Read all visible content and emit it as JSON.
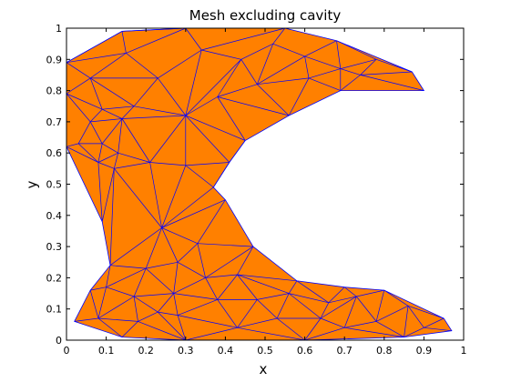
{
  "chart_data": {
    "type": "mesh",
    "title": "Mesh excluding cavity",
    "xlabel": "x",
    "ylabel": "y",
    "xlim": [
      0,
      1
    ],
    "ylim": [
      0,
      1
    ],
    "xticks": [
      "0",
      "0.1",
      "0.2",
      "0.3",
      "0.4",
      "0.5",
      "0.6",
      "0.7",
      "0.8",
      "0.9",
      "1"
    ],
    "yticks": [
      "0",
      "0.1",
      "0.2",
      "0.3",
      "0.4",
      "0.5",
      "0.6",
      "0.7",
      "0.8",
      "0.9",
      "1"
    ],
    "fill_color": "#ff8000",
    "edge_color": "#0000ff",
    "boundary": [
      [
        0.0,
        0.89
      ],
      [
        0.14,
        0.99
      ],
      [
        0.3,
        1.0
      ],
      [
        0.55,
        1.0
      ],
      [
        0.68,
        0.96
      ],
      [
        0.87,
        0.86
      ],
      [
        0.9,
        0.8
      ],
      [
        0.69,
        0.8
      ],
      [
        0.56,
        0.72
      ],
      [
        0.45,
        0.64
      ],
      [
        0.41,
        0.57
      ],
      [
        0.37,
        0.49
      ],
      [
        0.4,
        0.45
      ],
      [
        0.47,
        0.3
      ],
      [
        0.58,
        0.19
      ],
      [
        0.7,
        0.17
      ],
      [
        0.8,
        0.16
      ],
      [
        0.95,
        0.07
      ],
      [
        0.97,
        0.03
      ],
      [
        0.85,
        0.01
      ],
      [
        0.6,
        0.0
      ],
      [
        0.3,
        0.0
      ],
      [
        0.14,
        0.01
      ],
      [
        0.02,
        0.06
      ],
      [
        0.06,
        0.16
      ],
      [
        0.11,
        0.24
      ],
      [
        0.09,
        0.38
      ],
      [
        0.0,
        0.62
      ],
      [
        0.0,
        0.79
      ]
    ],
    "nodes": [
      [
        0.0,
        0.89
      ],
      [
        0.14,
        0.99
      ],
      [
        0.3,
        1.0
      ],
      [
        0.55,
        1.0
      ],
      [
        0.68,
        0.96
      ],
      [
        0.87,
        0.86
      ],
      [
        0.9,
        0.8
      ],
      [
        0.69,
        0.8
      ],
      [
        0.56,
        0.72
      ],
      [
        0.45,
        0.64
      ],
      [
        0.41,
        0.57
      ],
      [
        0.37,
        0.49
      ],
      [
        0.4,
        0.45
      ],
      [
        0.47,
        0.3
      ],
      [
        0.58,
        0.19
      ],
      [
        0.7,
        0.17
      ],
      [
        0.8,
        0.16
      ],
      [
        0.95,
        0.07
      ],
      [
        0.97,
        0.03
      ],
      [
        0.85,
        0.01
      ],
      [
        0.6,
        0.0
      ],
      [
        0.3,
        0.0
      ],
      [
        0.14,
        0.01
      ],
      [
        0.02,
        0.06
      ],
      [
        0.06,
        0.16
      ],
      [
        0.11,
        0.24
      ],
      [
        0.09,
        0.38
      ],
      [
        0.0,
        0.62
      ],
      [
        0.0,
        0.79
      ],
      [
        0.06,
        0.84
      ],
      [
        0.15,
        0.92
      ],
      [
        0.23,
        0.84
      ],
      [
        0.34,
        0.93
      ],
      [
        0.44,
        0.9
      ],
      [
        0.52,
        0.95
      ],
      [
        0.6,
        0.91
      ],
      [
        0.61,
        0.84
      ],
      [
        0.48,
        0.82
      ],
      [
        0.38,
        0.78
      ],
      [
        0.3,
        0.72
      ],
      [
        0.17,
        0.75
      ],
      [
        0.09,
        0.74
      ],
      [
        0.14,
        0.71
      ],
      [
        0.06,
        0.7
      ],
      [
        0.03,
        0.63
      ],
      [
        0.09,
        0.63
      ],
      [
        0.13,
        0.6
      ],
      [
        0.21,
        0.57
      ],
      [
        0.3,
        0.56
      ],
      [
        0.08,
        0.57
      ],
      [
        0.12,
        0.55
      ],
      [
        0.24,
        0.36
      ],
      [
        0.28,
        0.25
      ],
      [
        0.2,
        0.23
      ],
      [
        0.33,
        0.31
      ],
      [
        0.35,
        0.2
      ],
      [
        0.43,
        0.21
      ],
      [
        0.27,
        0.15
      ],
      [
        0.17,
        0.14
      ],
      [
        0.1,
        0.17
      ],
      [
        0.08,
        0.07
      ],
      [
        0.18,
        0.06
      ],
      [
        0.23,
        0.09
      ],
      [
        0.28,
        0.08
      ],
      [
        0.38,
        0.13
      ],
      [
        0.43,
        0.04
      ],
      [
        0.48,
        0.13
      ],
      [
        0.53,
        0.07
      ],
      [
        0.56,
        0.15
      ],
      [
        0.66,
        0.12
      ],
      [
        0.64,
        0.07
      ],
      [
        0.7,
        0.04
      ],
      [
        0.73,
        0.14
      ],
      [
        0.78,
        0.06
      ],
      [
        0.86,
        0.11
      ],
      [
        0.9,
        0.04
      ],
      [
        0.78,
        0.9
      ],
      [
        0.74,
        0.85
      ],
      [
        0.69,
        0.87
      ]
    ],
    "edges": [
      [
        29,
        0
      ],
      [
        29,
        30
      ],
      [
        29,
        31
      ],
      [
        29,
        28
      ],
      [
        29,
        41
      ],
      [
        29,
        40
      ],
      [
        30,
        1
      ],
      [
        30,
        2
      ],
      [
        30,
        31
      ],
      [
        30,
        0
      ],
      [
        31,
        32
      ],
      [
        31,
        40
      ],
      [
        31,
        39
      ],
      [
        32,
        2
      ],
      [
        32,
        3
      ],
      [
        32,
        33
      ],
      [
        32,
        39
      ],
      [
        33,
        34
      ],
      [
        33,
        37
      ],
      [
        33,
        38
      ],
      [
        33,
        39
      ],
      [
        34,
        3
      ],
      [
        34,
        35
      ],
      [
        34,
        37
      ],
      [
        35,
        4
      ],
      [
        35,
        36
      ],
      [
        35,
        37
      ],
      [
        36,
        37
      ],
      [
        36,
        7
      ],
      [
        36,
        78
      ],
      [
        36,
        8
      ],
      [
        37,
        38
      ],
      [
        37,
        8
      ],
      [
        38,
        39
      ],
      [
        38,
        9
      ],
      [
        38,
        8
      ],
      [
        39,
        40
      ],
      [
        39,
        42
      ],
      [
        39,
        47
      ],
      [
        39,
        48
      ],
      [
        39,
        10
      ],
      [
        39,
        9
      ],
      [
        40,
        41
      ],
      [
        40,
        42
      ],
      [
        41,
        42
      ],
      [
        41,
        43
      ],
      [
        41,
        28
      ],
      [
        42,
        43
      ],
      [
        42,
        45
      ],
      [
        42,
        46
      ],
      [
        42,
        47
      ],
      [
        43,
        28
      ],
      [
        43,
        44
      ],
      [
        43,
        45
      ],
      [
        44,
        27
      ],
      [
        44,
        45
      ],
      [
        44,
        49
      ],
      [
        45,
        46
      ],
      [
        45,
        49
      ],
      [
        46,
        47
      ],
      [
        46,
        50
      ],
      [
        46,
        49
      ],
      [
        47,
        48
      ],
      [
        47,
        50
      ],
      [
        47,
        51
      ],
      [
        48,
        10
      ],
      [
        48,
        11
      ],
      [
        48,
        51
      ],
      [
        49,
        27
      ],
      [
        49,
        50
      ],
      [
        49,
        26
      ],
      [
        50,
        26
      ],
      [
        50,
        51
      ],
      [
        50,
        25
      ],
      [
        51,
        11
      ],
      [
        51,
        12
      ],
      [
        51,
        54
      ],
      [
        51,
        52
      ],
      [
        51,
        53
      ],
      [
        51,
        25
      ],
      [
        52,
        53
      ],
      [
        52,
        54
      ],
      [
        52,
        55
      ],
      [
        52,
        57
      ],
      [
        53,
        25
      ],
      [
        53,
        59
      ],
      [
        53,
        58
      ],
      [
        53,
        57
      ],
      [
        54,
        12
      ],
      [
        54,
        13
      ],
      [
        54,
        55
      ],
      [
        55,
        13
      ],
      [
        55,
        56
      ],
      [
        55,
        57
      ],
      [
        55,
        64
      ],
      [
        56,
        13
      ],
      [
        56,
        14
      ],
      [
        56,
        64
      ],
      [
        56,
        66
      ],
      [
        56,
        68
      ],
      [
        57,
        58
      ],
      [
        57,
        62
      ],
      [
        57,
        63
      ],
      [
        57,
        64
      ],
      [
        58,
        59
      ],
      [
        58,
        60
      ],
      [
        58,
        61
      ],
      [
        58,
        62
      ],
      [
        59,
        24
      ],
      [
        59,
        25
      ],
      [
        59,
        60
      ],
      [
        60,
        23
      ],
      [
        60,
        22
      ],
      [
        60,
        61
      ],
      [
        60,
        24
      ],
      [
        61,
        22
      ],
      [
        61,
        62
      ],
      [
        61,
        21
      ],
      [
        62,
        63
      ],
      [
        62,
        21
      ],
      [
        63,
        21
      ],
      [
        63,
        64
      ],
      [
        63,
        65
      ],
      [
        64,
        65
      ],
      [
        64,
        66
      ],
      [
        65,
        21
      ],
      [
        65,
        20
      ],
      [
        65,
        66
      ],
      [
        65,
        67
      ],
      [
        66,
        67
      ],
      [
        66,
        68
      ],
      [
        67,
        20
      ],
      [
        67,
        68
      ],
      [
        67,
        70
      ],
      [
        68,
        14
      ],
      [
        68,
        69
      ],
      [
        68,
        70
      ],
      [
        69,
        14
      ],
      [
        69,
        15
      ],
      [
        69,
        70
      ],
      [
        69,
        72
      ],
      [
        70,
        20
      ],
      [
        70,
        71
      ],
      [
        70,
        72
      ],
      [
        71,
        20
      ],
      [
        71,
        19
      ],
      [
        71,
        73
      ],
      [
        71,
        72
      ],
      [
        72,
        15
      ],
      [
        72,
        16
      ],
      [
        72,
        73
      ],
      [
        73,
        16
      ],
      [
        73,
        74
      ],
      [
        73,
        19
      ],
      [
        74,
        16
      ],
      [
        74,
        17
      ],
      [
        74,
        75
      ],
      [
        74,
        19
      ],
      [
        75,
        17
      ],
      [
        75,
        18
      ],
      [
        75,
        19
      ],
      [
        76,
        4
      ],
      [
        76,
        5
      ],
      [
        76,
        77
      ],
      [
        76,
        78
      ],
      [
        77,
        5
      ],
      [
        77,
        6
      ],
      [
        77,
        7
      ],
      [
        77,
        78
      ],
      [
        78,
        4
      ],
      [
        78,
        35
      ],
      [
        78,
        7
      ],
      [
        9,
        10
      ],
      [
        10,
        11
      ],
      [
        1,
        2
      ],
      [
        0,
        1
      ]
    ]
  }
}
